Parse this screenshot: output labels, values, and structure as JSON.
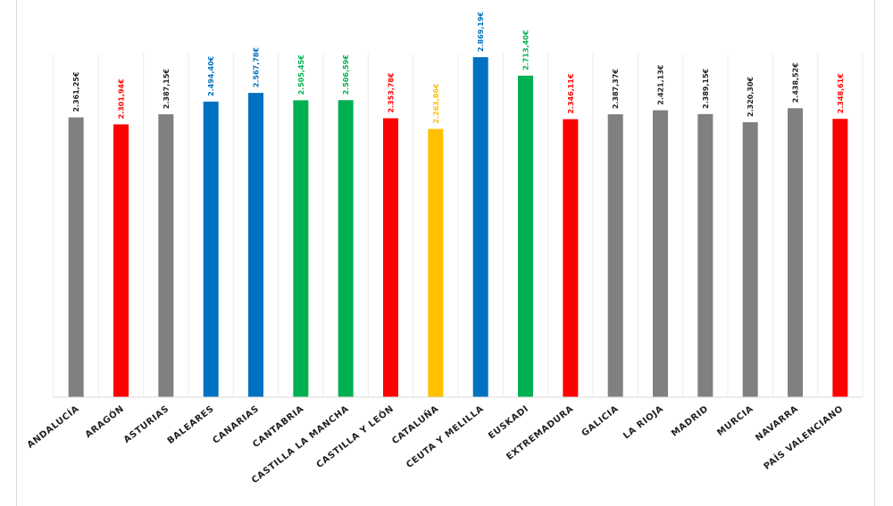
{
  "chart_data": {
    "type": "bar",
    "title": "",
    "xlabel": "",
    "ylabel": "",
    "ylim": [
      0,
      2900
    ],
    "grid": "vertical-separators",
    "categories": [
      "ANDALUCÍA",
      "ARAGÓN",
      "ASTURIAS",
      "BALEARES",
      "CANARIAS",
      "CANTABRIA",
      "CASTILLA LA MANCHA",
      "CASTILLA Y LEÓN",
      "CATALUÑA",
      "CEUTA Y MELILLA",
      "EUSKADI",
      "EXTREMADURA",
      "GALICIA",
      "LA RIOJA",
      "MADRID",
      "MURCIA",
      "NAVARRA",
      "PAÍS VALENCIANO"
    ],
    "values": [
      2361.25,
      2301.94,
      2387.15,
      2494.4,
      2567.78,
      2505.45,
      2506.59,
      2353.78,
      2263.86,
      2869.19,
      2713.4,
      2346.11,
      2387.37,
      2421.13,
      2389.15,
      2320.3,
      2438.52,
      2348.61
    ],
    "value_labels": [
      "2.361,25€",
      "2.301,94€",
      "2.387,15€",
      "2.494,40€",
      "2.567,78€",
      "2.505,45€",
      "2.506,59€",
      "2.353,78€",
      "2.263,86€",
      "2.869,19€",
      "2.713,40€",
      "2.346,11€",
      "2.387,37€",
      "2.421,13€",
      "2.389,15€",
      "2.320,30€",
      "2.438,52€",
      "2.348,61€"
    ],
    "colors": [
      "#808080",
      "#ff0000",
      "#808080",
      "#0070c0",
      "#0070c0",
      "#00b050",
      "#00b050",
      "#ff0000",
      "#ffc000",
      "#0070c0",
      "#00b050",
      "#ff0000",
      "#808080",
      "#808080",
      "#808080",
      "#808080",
      "#808080",
      "#ff0000"
    ],
    "label_colors": [
      "#1f1f1f",
      "#ff0000",
      "#1f1f1f",
      "#0070c0",
      "#0070c0",
      "#00b050",
      "#00b050",
      "#ff0000",
      "#ffc000",
      "#0070c0",
      "#00b050",
      "#ff0000",
      "#1f1f1f",
      "#1f1f1f",
      "#1f1f1f",
      "#1f1f1f",
      "#1f1f1f",
      "#ff0000"
    ]
  }
}
